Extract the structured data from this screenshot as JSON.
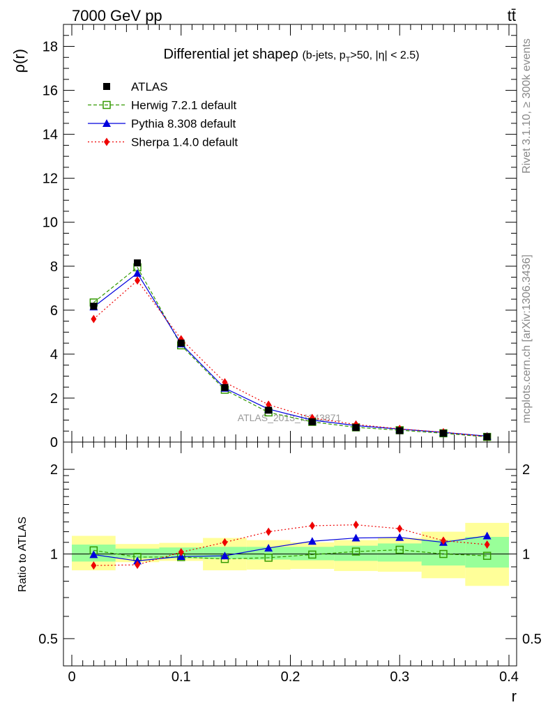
{
  "header": {
    "energy_label": "7000 GeV pp",
    "process_label": "tt̄"
  },
  "side_labels": {
    "rivet": "Rivet 3.1.10, ≥ 300k events",
    "mcplots": "mcplots.cern.ch [arXiv:1306.3436]"
  },
  "chart_data": {
    "type": "line",
    "title_main": "Differential jet shape",
    "title_rho": "ρ",
    "title_sub": "(b-jets, p",
    "title_sub_T": "T",
    "title_sub_rest": ">50, |η| < 2.5)",
    "watermark": "ATLAS_2013_I1243871",
    "ylabel": "ρ(r)",
    "ratio_ylabel": "Ratio to ATLAS",
    "xlabel": "r",
    "xlim": [
      0.0,
      0.4
    ],
    "ylim": [
      0,
      19
    ],
    "ratio_ylim": [
      0.4,
      2.5
    ],
    "x_ticks": [
      "0",
      "0.1",
      "0.2",
      "0.3",
      "0.4"
    ],
    "y_ticks": [
      "0",
      "2",
      "4",
      "6",
      "8",
      "10",
      "12",
      "14",
      "16",
      "18"
    ],
    "ratio_ticks": [
      "0.5",
      "1",
      "2"
    ],
    "x": [
      0.02,
      0.06,
      0.1,
      0.14,
      0.18,
      0.22,
      0.26,
      0.3,
      0.34,
      0.38
    ],
    "series": [
      {
        "name": "ATLAS",
        "color": "#000000",
        "values": [
          6.18,
          8.15,
          4.5,
          2.48,
          1.45,
          0.92,
          0.66,
          0.52,
          0.4,
          0.24
        ]
      },
      {
        "name": "Herwig 7.2.1 default",
        "color": "#339900",
        "values": [
          6.35,
          7.95,
          4.4,
          2.38,
          1.35,
          0.92,
          0.67,
          0.54,
          0.4,
          0.235
        ]
      },
      {
        "name": "Pythia 8.308 default",
        "color": "#0000dd",
        "values": [
          6.15,
          7.68,
          4.47,
          2.45,
          1.5,
          1.0,
          0.75,
          0.59,
          0.44,
          0.27
        ]
      },
      {
        "name": "Sherpa 1.4.0 default",
        "color": "#ee0000",
        "values": [
          5.6,
          7.35,
          4.68,
          2.72,
          1.7,
          1.1,
          0.8,
          0.6,
          0.45,
          0.25
        ]
      }
    ],
    "ratio_series": [
      {
        "name": "Herwig 7.2.1 default",
        "values": [
          1.03,
          0.975,
          0.975,
          0.96,
          0.97,
          0.995,
          1.02,
          1.035,
          1.0,
          0.985
        ]
      },
      {
        "name": "Pythia 8.308 default",
        "values": [
          0.995,
          0.945,
          0.98,
          0.985,
          1.05,
          1.11,
          1.14,
          1.145,
          1.1,
          1.16
        ]
      },
      {
        "name": "Sherpa 1.4.0 default",
        "values": [
          0.91,
          0.915,
          1.015,
          1.1,
          1.2,
          1.26,
          1.27,
          1.23,
          1.115,
          1.08
        ]
      }
    ],
    "bands": {
      "x_edges": [
        0.0,
        0.04,
        0.08,
        0.12,
        0.16,
        0.2,
        0.24,
        0.28,
        0.32,
        0.36,
        0.4
      ],
      "yellow": [
        [
          0.875,
          1.16
        ],
        [
          0.935,
          1.085
        ],
        [
          0.945,
          1.095
        ],
        [
          0.875,
          1.14
        ],
        [
          0.88,
          1.12
        ],
        [
          0.885,
          1.1
        ],
        [
          0.87,
          1.12
        ],
        [
          0.865,
          1.14
        ],
        [
          0.82,
          1.2
        ],
        [
          0.77,
          1.29
        ]
      ],
      "green": [
        [
          0.94,
          1.08
        ],
        [
          0.965,
          1.045
        ],
        [
          0.965,
          1.055
        ],
        [
          0.96,
          1.06
        ],
        [
          0.955,
          1.06
        ],
        [
          0.95,
          1.06
        ],
        [
          0.945,
          1.07
        ],
        [
          0.94,
          1.09
        ],
        [
          0.91,
          1.12
        ],
        [
          0.895,
          1.15
        ]
      ]
    }
  }
}
